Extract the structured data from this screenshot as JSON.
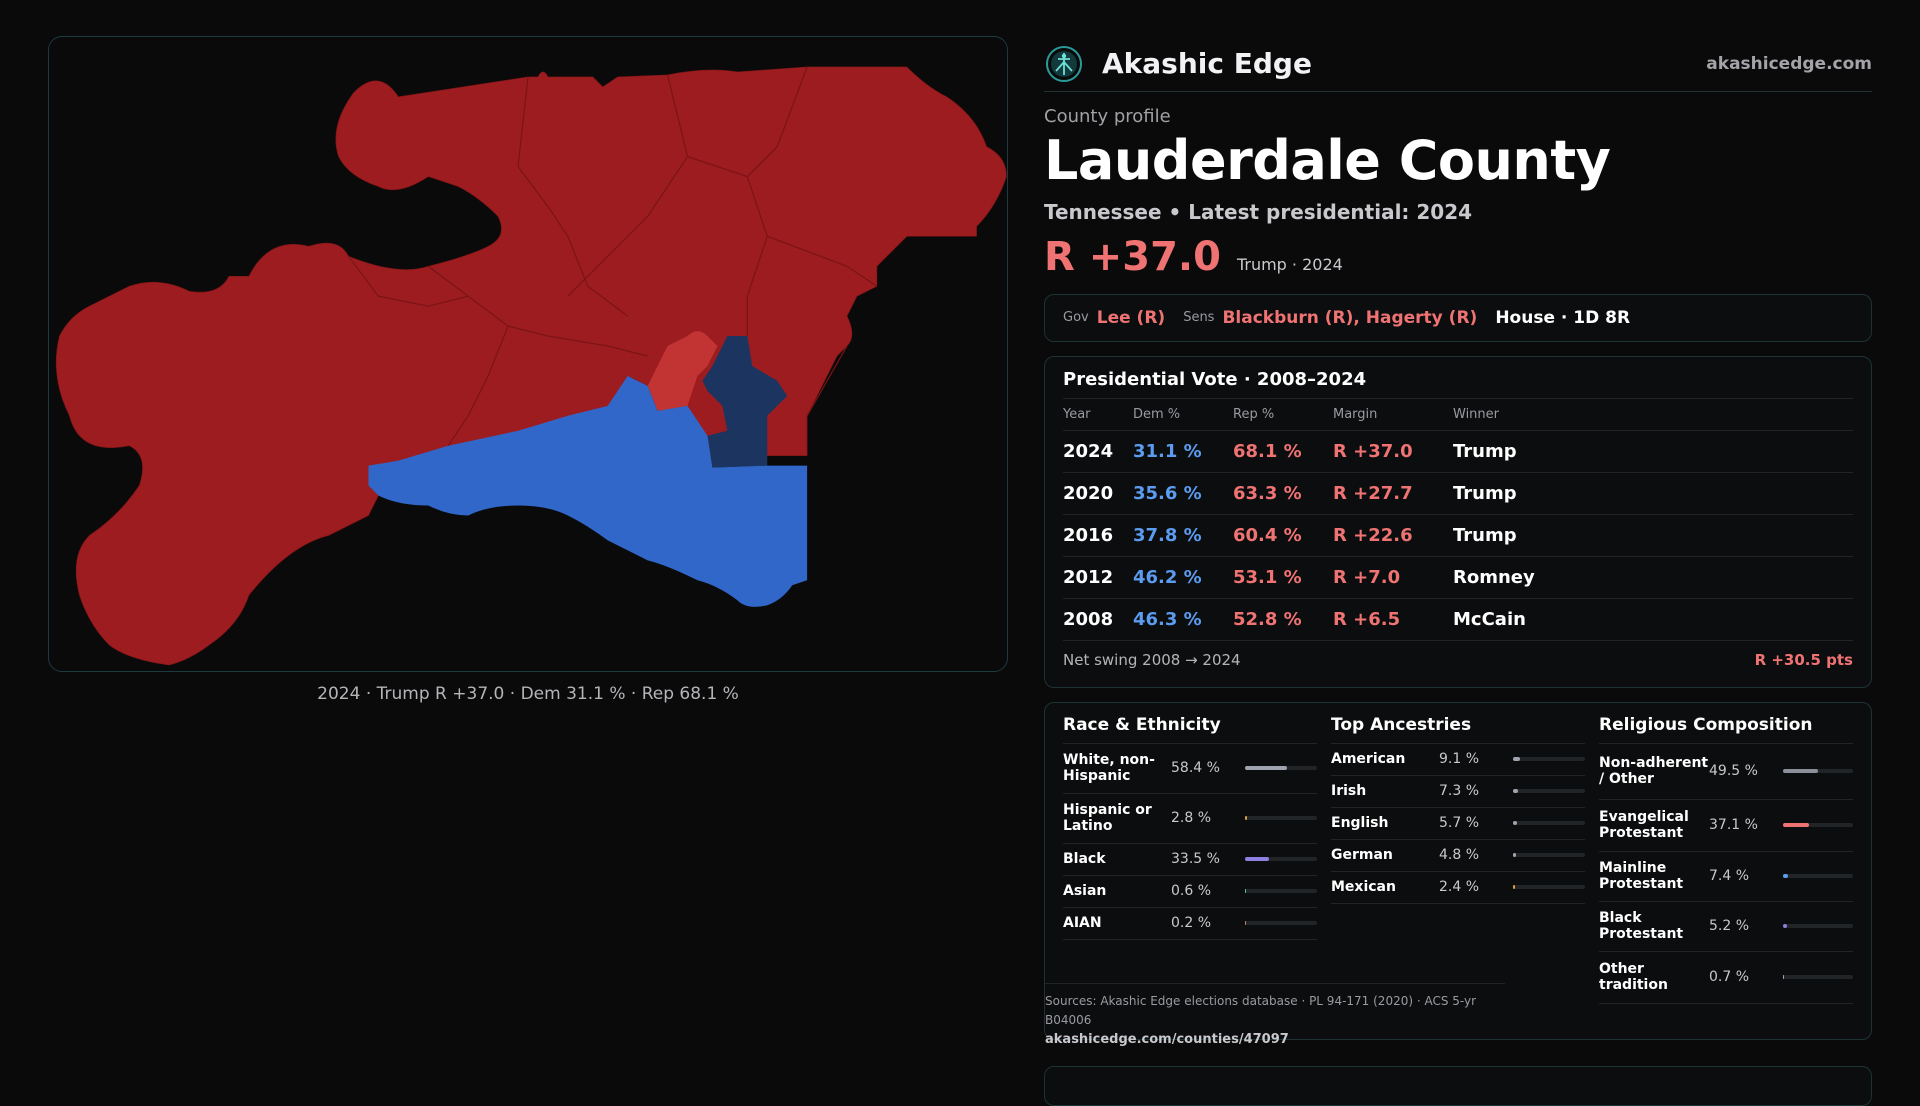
{
  "brand": {
    "name": "Akashic Edge",
    "url": "akashicedge.com",
    "logo_icon": "akashic-logo-icon"
  },
  "profile": {
    "kicker": "County profile",
    "county": "Lauderdale County",
    "subtitle": "Tennessee • Latest presidential: 2024",
    "margin": "R +37.0",
    "margin_note": "Trump · 2024"
  },
  "officials": {
    "gov_label": "Gov",
    "gov": "Lee (R)",
    "sens_label": "Sens",
    "sens": "Blackburn (R), Hagerty (R)",
    "house": "House · 1D 8R"
  },
  "votes": {
    "title": "Presidential Vote · 2008–2024",
    "headers": [
      "Year",
      "Dem %",
      "Rep %",
      "Margin",
      "Winner"
    ],
    "rows": [
      {
        "year": "2024",
        "dem": "31.1 %",
        "rep": "68.1 %",
        "margin": "R +37.0",
        "winner": "Trump"
      },
      {
        "year": "2020",
        "dem": "35.6 %",
        "rep": "63.3 %",
        "margin": "R +27.7",
        "winner": "Trump"
      },
      {
        "year": "2016",
        "dem": "37.8 %",
        "rep": "60.4 %",
        "margin": "R +22.6",
        "winner": "Trump"
      },
      {
        "year": "2012",
        "dem": "46.2 %",
        "rep": "53.1 %",
        "margin": "R +7.0",
        "winner": "Romney"
      },
      {
        "year": "2008",
        "dem": "46.3 %",
        "rep": "52.8 %",
        "margin": "R +6.5",
        "winner": "McCain"
      }
    ],
    "swing_label": "Net swing 2008 → 2024",
    "swing_value": "R +30.5 pts"
  },
  "race": {
    "title": "Race & Ethnicity",
    "rows": [
      {
        "label": "White, non-Hispanic",
        "pct": "58.4 %",
        "value": 58.4,
        "color": "#9ea3ad"
      },
      {
        "label": "Hispanic or Latino",
        "pct": "2.8 %",
        "value": 2.8,
        "color": "#e0a040"
      },
      {
        "label": "Black",
        "pct": "33.5 %",
        "value": 33.5,
        "color": "#8f7fe0"
      },
      {
        "label": "Asian",
        "pct": "0.6 %",
        "value": 0.6,
        "color": "#5fc0b0"
      },
      {
        "label": "AIAN",
        "pct": "0.2 %",
        "value": 0.2,
        "color": "#c08060"
      }
    ]
  },
  "ancestry": {
    "title": "Top Ancestries",
    "rows": [
      {
        "label": "American",
        "pct": "9.1 %",
        "value": 9.1,
        "color": "#9ea3ad"
      },
      {
        "label": "Irish",
        "pct": "7.3 %",
        "value": 7.3,
        "color": "#9ea3ad"
      },
      {
        "label": "English",
        "pct": "5.7 %",
        "value": 5.7,
        "color": "#9ea3ad"
      },
      {
        "label": "German",
        "pct": "4.8 %",
        "value": 4.8,
        "color": "#9ea3ad"
      },
      {
        "label": "Mexican",
        "pct": "2.4 %",
        "value": 2.4,
        "color": "#e0a040"
      }
    ]
  },
  "religion": {
    "title": "Religious Composition",
    "rows": [
      {
        "label": "Non-adherent / Other",
        "pct": "49.5 %",
        "value": 49.5,
        "color": "#8a8f99"
      },
      {
        "label": "Evangelical Protestant",
        "pct": "37.1 %",
        "value": 37.1,
        "color": "#f07373"
      },
      {
        "label": "Mainline Protestant",
        "pct": "7.4 %",
        "value": 7.4,
        "color": "#5b9cf0"
      },
      {
        "label": "Black Protestant",
        "pct": "5.2 %",
        "value": 5.2,
        "color": "#8f7fe0"
      },
      {
        "label": "Other tradition",
        "pct": "0.7 %",
        "value": 0.7,
        "color": "#9ea3ad"
      }
    ]
  },
  "sources": {
    "text": "Sources: Akashic Edge elections database · PL 94-171 (2020) · ACS 5-yr B04006",
    "url": "akashicedge.com/counties/47097"
  },
  "map": {
    "caption": "2024 · Trump  R +37.0 · Dem 31.1 % · Rep 68.1 %",
    "colors": {
      "rep": "#9c1c1f",
      "rep_light": "#c23434",
      "dem": "#3067c8",
      "dem_dark": "#1c3560"
    }
  }
}
